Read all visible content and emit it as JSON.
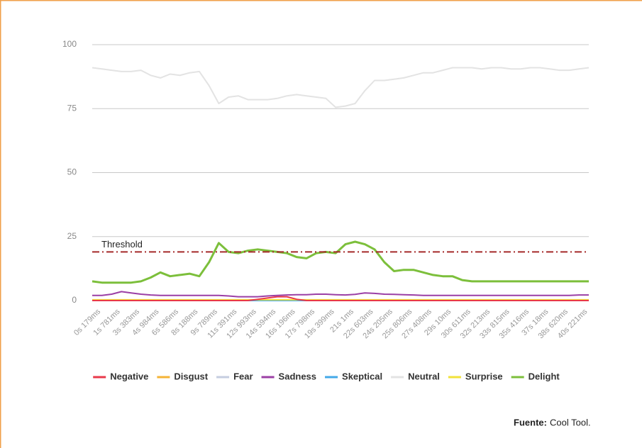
{
  "chart_data": {
    "type": "line",
    "categories": [
      "0s 179ms",
      null,
      "1s 781ms",
      null,
      "3s 383ms",
      null,
      "4s 984ms",
      null,
      "6s 586ms",
      null,
      "8s 188ms",
      null,
      "9s 789ms",
      null,
      "11s 391ms",
      null,
      "12s 993ms",
      null,
      "14s 594ms",
      null,
      "16s 196ms",
      null,
      "17s 798ms",
      null,
      "19s 399ms",
      null,
      "21s 1ms",
      null,
      "22s 603ms",
      null,
      "24s 205ms",
      null,
      "25s 806ms",
      null,
      "27s 408ms",
      null,
      "29s 10ms",
      null,
      "30s 611ms",
      null,
      "32s 213ms",
      null,
      "33s 815ms",
      null,
      "35s 416ms",
      null,
      "37s 18ms",
      null,
      "38s 620ms",
      null,
      "40s 221ms",
      null
    ],
    "ylim": [
      0,
      100
    ],
    "yticks": [
      0,
      25,
      50,
      75,
      100
    ],
    "grid": true,
    "threshold": {
      "value": 19,
      "label": "Threshold",
      "color": "#a52a2a"
    },
    "series": [
      {
        "name": "Negative",
        "color": "#e8394a",
        "values": [
          0,
          0,
          0,
          0,
          0,
          0,
          0,
          0,
          0,
          0,
          0,
          0,
          0,
          0,
          0,
          0,
          0,
          0.5,
          1,
          1.5,
          1.5,
          0.5,
          0,
          0,
          0,
          0,
          0,
          0,
          0,
          0,
          0,
          0,
          0,
          0,
          0,
          0,
          0,
          0,
          0,
          0,
          0,
          0,
          0,
          0,
          0,
          0,
          0,
          0,
          0,
          0,
          0,
          0
        ]
      },
      {
        "name": "Disgust",
        "color": "#f5b335",
        "values": [
          0,
          0,
          0,
          0,
          0,
          0,
          0,
          0,
          0,
          0,
          0,
          0,
          0,
          0,
          0,
          0,
          0,
          0,
          0,
          0,
          0,
          0,
          0,
          0,
          0,
          0,
          0,
          0,
          0,
          0,
          0,
          0,
          0,
          0,
          0,
          0,
          0,
          0,
          0,
          0,
          0,
          0,
          0,
          0,
          0,
          0,
          0,
          0,
          0,
          0,
          0,
          0
        ]
      },
      {
        "name": "Fear",
        "color": "#c5cde0",
        "values": [
          0,
          0,
          0,
          0,
          0,
          0,
          0,
          0,
          0,
          0,
          0,
          0,
          0,
          0,
          0,
          0,
          0,
          0,
          0,
          0,
          0,
          0,
          0,
          0,
          0,
          0,
          0,
          0,
          0,
          0,
          0,
          0,
          0,
          0,
          0,
          0,
          0,
          0,
          0,
          0,
          0,
          0,
          0,
          0,
          0,
          0,
          0,
          0,
          0,
          0,
          0,
          0
        ]
      },
      {
        "name": "Sadness",
        "color": "#9b3fa5",
        "values": [
          2,
          2,
          2.5,
          3.5,
          3,
          2.5,
          2.2,
          2,
          2,
          2,
          2,
          2,
          2,
          2,
          1.8,
          1.5,
          1.5,
          1.5,
          1.8,
          2,
          2.2,
          2.3,
          2.3,
          2.5,
          2.5,
          2.3,
          2.2,
          2.4,
          3,
          2.8,
          2.5,
          2.4,
          2.3,
          2.2,
          2,
          2,
          2,
          2,
          2,
          2,
          2,
          2,
          2,
          2,
          2,
          2,
          2,
          2,
          2,
          2,
          2.2,
          2.2
        ]
      },
      {
        "name": "Skeptical",
        "color": "#43a9e8",
        "values": [
          0,
          0,
          0,
          0,
          0,
          0,
          0,
          0,
          0,
          0,
          0,
          0,
          0,
          0,
          0,
          0,
          0,
          0,
          0,
          0,
          0,
          0,
          0,
          0,
          0,
          0,
          0,
          0,
          0,
          0,
          0,
          0,
          0,
          0,
          0,
          0,
          0,
          0,
          0,
          0,
          0,
          0,
          0,
          0,
          0,
          0,
          0,
          0,
          0,
          0,
          0,
          0
        ]
      },
      {
        "name": "Neutral",
        "color": "#e3e3e3",
        "values": [
          91,
          90.5,
          90,
          89.5,
          89.5,
          90,
          88,
          87,
          88.5,
          88,
          89,
          89.5,
          84,
          77,
          79.5,
          80,
          78.5,
          78.5,
          78.5,
          79,
          80,
          80.5,
          80,
          79.5,
          79,
          75.5,
          76,
          77,
          82,
          86,
          86,
          86.5,
          87,
          88,
          89,
          89,
          90,
          91,
          91,
          91,
          90.5,
          91,
          91,
          90.5,
          90.5,
          91,
          91,
          90.5,
          90,
          90,
          90.5,
          91
        ]
      },
      {
        "name": "Surprise",
        "color": "#f2e23a",
        "values": [
          0.3,
          0.3,
          0.3,
          0.3,
          0.3,
          0.3,
          0.3,
          0.3,
          0.3,
          0.3,
          0.3,
          0.3,
          0.3,
          0.3,
          0.3,
          0.3,
          0.3,
          0.3,
          0.3,
          0.3,
          0.3,
          0.3,
          0.3,
          0.3,
          0.3,
          0.3,
          0.3,
          0.3,
          0.3,
          0.3,
          0.3,
          0.3,
          0.3,
          0.3,
          0.3,
          0.3,
          0.3,
          0.3,
          0.3,
          0.3,
          0.3,
          0.3,
          0.3,
          0.3,
          0.3,
          0.3,
          0.3,
          0.3,
          0.3,
          0.3,
          0.3,
          0.3
        ]
      },
      {
        "name": "Delight",
        "color": "#7cbf3b",
        "values": [
          7.5,
          7,
          7,
          7,
          7,
          7.5,
          9,
          11,
          9.5,
          10,
          10.5,
          9.5,
          15,
          22.5,
          19,
          18.5,
          19.5,
          20,
          19.5,
          19,
          18.5,
          17,
          16.5,
          18.5,
          19,
          18.5,
          22,
          23,
          22,
          20,
          15,
          11.5,
          12,
          12,
          11,
          10,
          9.5,
          9.5,
          8,
          7.5,
          7.5,
          7.5,
          7.5,
          7.5,
          7.5,
          7.5,
          7.5,
          7.5,
          7.5,
          7.5,
          7.5,
          7.5
        ]
      }
    ],
    "source_label": "Fuente:",
    "source_text": "Cool Tool."
  }
}
